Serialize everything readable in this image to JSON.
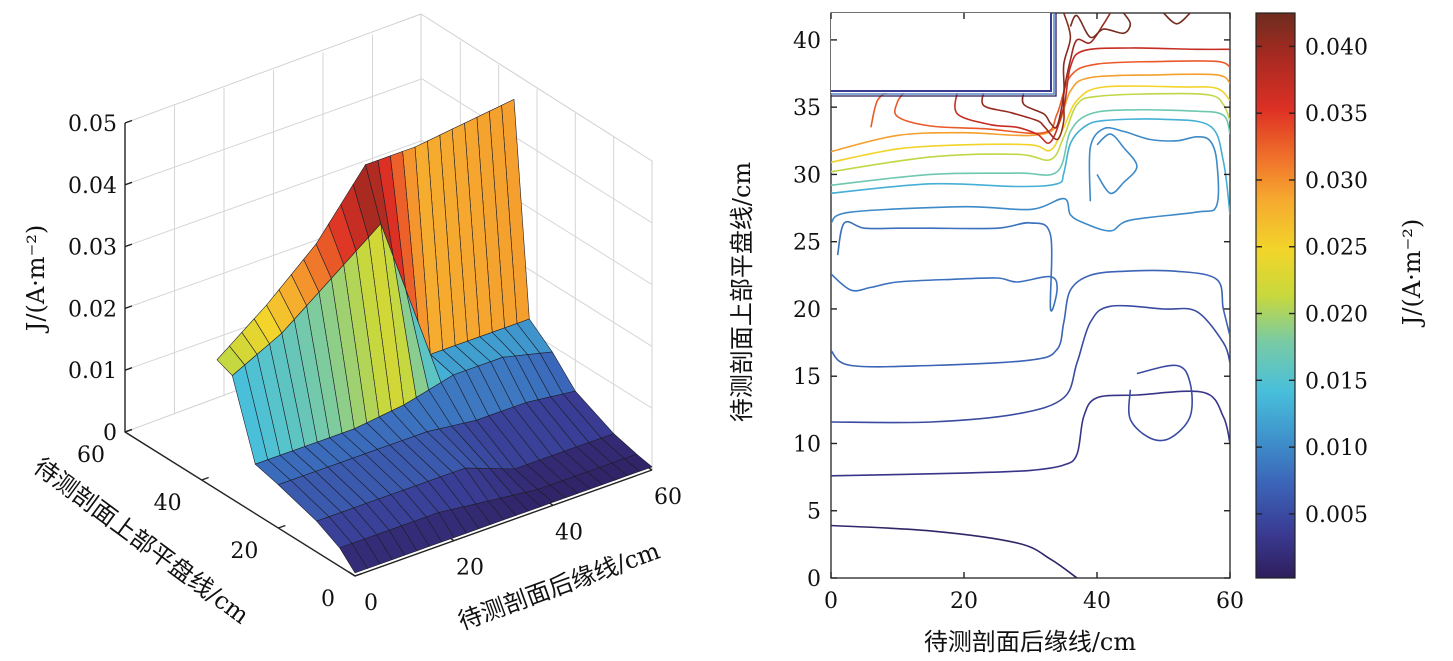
{
  "chart_data": [
    {
      "type": "surface",
      "zlabel": "J/(A·m⁻²)",
      "xlabel": "待测剖面后缘线/cm",
      "ylabel": "待测剖面上部平盘线/cm",
      "x_ticks": [
        "0",
        "20",
        "40",
        "60"
      ],
      "y_ticks": [
        "0",
        "20",
        "40",
        "60"
      ],
      "z_ticks": [
        "0",
        "0.01",
        "0.02",
        "0.03",
        "0.04",
        "0.05"
      ],
      "xlim": [
        0,
        60
      ],
      "ylim": [
        0,
        60
      ],
      "zlim": [
        0,
        0.05
      ],
      "surface_rows": [
        {
          "y": 0,
          "x": [
            0,
            10,
            20,
            30,
            40,
            50,
            60
          ],
          "z": [
            0.0005,
            0.0005,
            0.0005,
            0.0005,
            0.0005,
            0.0005,
            0.0005
          ]
        },
        {
          "y": 4,
          "x": [
            0,
            10,
            20,
            30,
            40,
            50,
            60
          ],
          "z": [
            0.003,
            0.003,
            0.003,
            0.002,
            0.001,
            0.001,
            0.001
          ]
        },
        {
          "y": 10,
          "x": [
            0,
            10,
            20,
            30,
            40,
            50,
            60
          ],
          "z": [
            0.005,
            0.005,
            0.005,
            0.005,
            0.002,
            0.002,
            0.002
          ]
        },
        {
          "y": 20,
          "x": [
            0,
            10,
            20,
            30,
            40,
            50,
            60
          ],
          "z": [
            0.007,
            0.007,
            0.007,
            0.007,
            0.006,
            0.006,
            0.005
          ]
        },
        {
          "y": 26,
          "x": [
            0,
            10,
            20,
            30,
            40,
            50,
            60
          ],
          "z": [
            0.008,
            0.008,
            0.008,
            0.009,
            0.011,
            0.011,
            0.009
          ]
        },
        {
          "y": 32,
          "x": [
            0,
            10,
            20,
            30,
            40,
            50,
            60
          ],
          "z": [
            0.02,
            0.024,
            0.03,
            0.036,
            0.012,
            0.012,
            0.012
          ]
        },
        {
          "y": 36,
          "x": [
            0,
            10,
            20,
            30,
            40,
            50,
            60
          ],
          "z": [
            0.021,
            0.027,
            0.034,
            0.044,
            0.044,
            0.045,
            0.046
          ]
        }
      ]
    },
    {
      "type": "contour",
      "xlabel": "待测剖面后缘线/cm",
      "ylabel": "待测剖面上部平盘线/cm",
      "colorbar_label": "J/(A·m⁻²)",
      "x_ticks": [
        "0",
        "20",
        "40",
        "60"
      ],
      "y_ticks": [
        "0",
        "5",
        "10",
        "15",
        "20",
        "25",
        "30",
        "35",
        "40"
      ],
      "colorbar_ticks": [
        "0.005",
        "0.010",
        "0.015",
        "0.020",
        "0.025",
        "0.030",
        "0.035",
        "0.040"
      ],
      "xlim": [
        0,
        60
      ],
      "ylim": [
        0,
        42
      ],
      "clim": [
        0.0002,
        0.0425
      ],
      "colormap": [
        "#2e1e5c",
        "#3a3b93",
        "#3b66b9",
        "#3f94cc",
        "#48bfdb",
        "#7acba3",
        "#c8d83c",
        "#f2d52a",
        "#f6a92f",
        "#ef6c2a",
        "#dd3024",
        "#a92a21",
        "#6e2c1f"
      ],
      "contours": [
        {
          "level": 0.001,
          "points": [
            [
              0,
              3.9
            ],
            [
              15,
              3.5
            ],
            [
              28,
              2.6
            ],
            [
              33,
              1.4
            ],
            [
              37,
              0
            ]
          ]
        },
        {
          "level": 0.003,
          "points": [
            [
              0,
              7.6
            ],
            [
              20,
              7.8
            ],
            [
              30,
              8
            ],
            [
              35,
              8.4
            ],
            [
              37,
              9.2
            ],
            [
              38,
              12
            ],
            [
              40,
              13.4
            ],
            [
              46,
              13.6
            ],
            [
              56,
              13.8
            ],
            [
              59,
              12
            ],
            [
              60,
              10
            ]
          ]
        },
        {
          "level": 0.005,
          "points": [
            [
              0,
              11.6
            ],
            [
              15,
              11.6
            ],
            [
              28,
              12.2
            ],
            [
              35,
              13.4
            ],
            [
              37,
              16
            ],
            [
              39,
              19
            ],
            [
              42,
              20.2
            ],
            [
              50,
              20
            ],
            [
              55,
              19.8
            ],
            [
              59,
              17.5
            ],
            [
              60,
              16
            ]
          ]
        },
        {
          "level": 0.005,
          "points": [
            [
              46,
              15.2
            ],
            [
              52,
              15.8
            ],
            [
              54,
              14.5
            ],
            [
              54,
              12
            ],
            [
              51,
              10.4
            ],
            [
              48,
              10.4
            ],
            [
              45,
              11.8
            ],
            [
              45,
              14
            ]
          ]
        },
        {
          "level": 0.007,
          "points": [
            [
              0,
              16.9
            ],
            [
              3,
              15.8
            ],
            [
              15,
              15.8
            ],
            [
              30,
              16.2
            ],
            [
              34,
              17
            ],
            [
              35,
              19
            ],
            [
              36,
              21.4
            ],
            [
              39,
              22.5
            ],
            [
              44,
              22.8
            ],
            [
              52,
              22.8
            ],
            [
              58,
              22.2
            ],
            [
              59,
              20
            ],
            [
              60,
              18
            ]
          ]
        },
        {
          "level": 0.008,
          "points": [
            [
              0,
              22.6
            ],
            [
              3,
              21.4
            ],
            [
              6,
              21.6
            ],
            [
              10,
              22
            ],
            [
              18,
              22.2
            ],
            [
              25,
              22.3
            ],
            [
              28,
              22
            ],
            [
              33,
              22.4
            ],
            [
              34,
              21.5
            ],
            [
              33,
              20
            ],
            [
              33,
              25.5
            ],
            [
              30,
              26.4
            ],
            [
              25,
              26
            ],
            [
              15,
              26
            ],
            [
              10,
              26
            ],
            [
              5,
              26
            ],
            [
              2,
              26.4
            ],
            [
              1,
              24
            ]
          ]
        },
        {
          "level": 0.01,
          "points": [
            [
              0,
              26.4
            ],
            [
              3,
              27.2
            ],
            [
              20,
              27.6
            ],
            [
              30,
              27.4
            ],
            [
              35,
              28.2
            ],
            [
              36,
              27
            ],
            [
              38,
              26.4
            ],
            [
              42,
              25.8
            ],
            [
              45,
              26.6
            ],
            [
              55,
              27.2
            ],
            [
              58,
              27.7
            ],
            [
              58,
              31
            ],
            [
              57,
              32.5
            ],
            [
              55,
              32.8
            ],
            [
              52,
              32.5
            ],
            [
              48,
              32.6
            ],
            [
              44,
              33.2
            ],
            [
              41,
              33.4
            ],
            [
              39,
              32
            ],
            [
              39,
              28
            ]
          ]
        },
        {
          "level": 0.01,
          "points": [
            [
              40,
              32.2
            ],
            [
              42,
              33
            ],
            [
              44,
              32
            ],
            [
              46,
              30.6
            ],
            [
              44,
              29.4
            ],
            [
              42,
              28.6
            ],
            [
              40,
              30
            ]
          ]
        },
        {
          "level": 0.013,
          "points": [
            [
              0,
              28.6
            ],
            [
              15,
              29.3
            ],
            [
              28,
              29.1
            ],
            [
              34,
              29.3
            ],
            [
              35,
              30.1
            ],
            [
              36,
              32.3
            ],
            [
              38,
              33.5
            ],
            [
              41,
              34
            ],
            [
              50,
              34.1
            ],
            [
              57,
              33.6
            ],
            [
              59,
              31
            ],
            [
              60,
              27
            ]
          ]
        },
        {
          "level": 0.017,
          "points": [
            [
              0,
              29.2
            ],
            [
              15,
              30
            ],
            [
              28,
              30.1
            ],
            [
              34,
              30.2
            ],
            [
              36,
              33.2
            ],
            [
              39,
              34.5
            ],
            [
              45,
              34.8
            ],
            [
              55,
              34.7
            ],
            [
              59,
              34.4
            ],
            [
              60,
              33
            ]
          ]
        },
        {
          "level": 0.021,
          "points": [
            [
              0,
              30.2
            ],
            [
              15,
              31.3
            ],
            [
              28,
              31.5
            ],
            [
              33,
              31.1
            ],
            [
              35,
              32.8
            ],
            [
              37,
              35.2
            ],
            [
              40,
              35.8
            ],
            [
              50,
              36
            ],
            [
              57,
              35.9
            ],
            [
              59,
              35.2
            ],
            [
              60,
              34
            ]
          ]
        },
        {
          "level": 0.025,
          "points": [
            [
              0,
              30.9
            ],
            [
              10,
              31.9
            ],
            [
              20,
              32.2
            ],
            [
              30,
              32.2
            ],
            [
              33,
              31.8
            ],
            [
              35,
              33.5
            ],
            [
              37,
              35.5
            ],
            [
              41,
              36.5
            ],
            [
              53,
              36.5
            ],
            [
              58,
              36.4
            ],
            [
              60,
              35.5
            ]
          ]
        },
        {
          "level": 0.029,
          "points": [
            [
              0,
              31.7
            ],
            [
              10,
              32.9
            ],
            [
              20,
              33.1
            ],
            [
              30,
              32.9
            ],
            [
              34,
              33.6
            ],
            [
              36,
              36.2
            ],
            [
              39,
              37.2
            ],
            [
              49,
              37.4
            ],
            [
              58,
              37.4
            ],
            [
              60,
              36.8
            ]
          ]
        },
        {
          "level": 0.033,
          "points": [
            [
              6,
              33.5
            ],
            [
              7,
              35.5
            ],
            [
              9,
              36.2
            ],
            [
              11,
              36.2
            ],
            [
              10,
              35.4
            ],
            [
              10,
              34.3
            ],
            [
              15,
              33.6
            ],
            [
              23,
              33.4
            ],
            [
              32,
              33.1
            ],
            [
              34,
              34.5
            ],
            [
              36,
              37.3
            ],
            [
              40,
              38.2
            ],
            [
              50,
              38.4
            ],
            [
              58,
              38.4
            ],
            [
              60,
              38
            ]
          ]
        },
        {
          "level": 0.037,
          "points": [
            [
              19,
              36.2
            ],
            [
              19,
              34.5
            ],
            [
              24,
              33.7
            ],
            [
              28,
              33.5
            ],
            [
              31,
              33
            ],
            [
              33,
              32.4
            ],
            [
              35,
              35
            ],
            [
              36,
              38
            ],
            [
              38,
              39.2
            ],
            [
              45,
              39.4
            ],
            [
              55,
              39.3
            ],
            [
              60,
              39.3
            ]
          ]
        },
        {
          "level": 0.04,
          "points": [
            [
              23,
              36.2
            ],
            [
              23,
              35.1
            ],
            [
              27,
              34.6
            ],
            [
              31,
              34
            ],
            [
              32,
              33.6
            ],
            [
              34,
              32.6
            ],
            [
              35,
              34
            ],
            [
              35,
              36
            ],
            [
              36,
              38.5
            ],
            [
              37,
              40
            ],
            [
              39,
              39.8
            ],
            [
              41,
              41.2
            ],
            [
              42,
              42
            ]
          ]
        },
        {
          "level": 0.041,
          "points": [
            [
              29,
              36.2
            ],
            [
              29,
              35.2
            ],
            [
              32,
              34.5
            ],
            [
              33,
              33.8
            ],
            [
              34,
              33.6
            ],
            [
              35,
              36
            ],
            [
              35,
              38.2
            ],
            [
              36,
              40.2
            ],
            [
              35,
              42
            ]
          ]
        },
        {
          "level": 0.042,
          "points": [
            [
              36,
              41
            ],
            [
              37,
              41.8
            ],
            [
              39,
              40.2
            ],
            [
              41,
              40.8
            ],
            [
              44,
              40.5
            ],
            [
              45,
              41.2
            ],
            [
              44,
              42
            ]
          ]
        },
        {
          "level": 0.042,
          "points": [
            [
              50,
              42
            ],
            [
              52,
              41.2
            ],
            [
              54,
              42
            ]
          ]
        }
      ]
    }
  ]
}
